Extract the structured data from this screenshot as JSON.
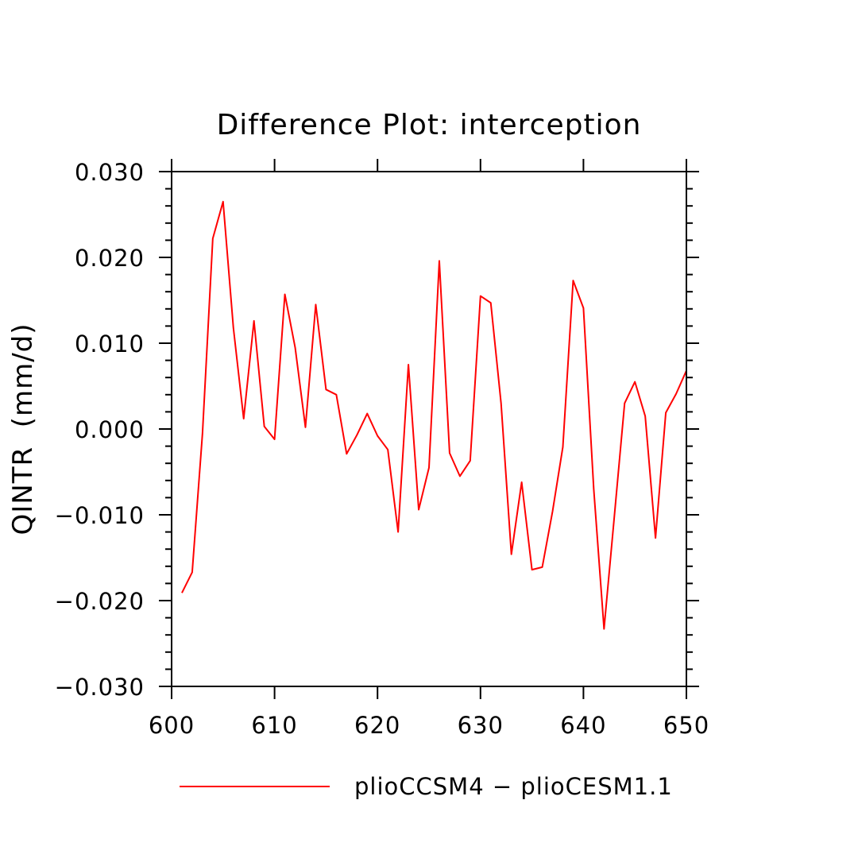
{
  "chart_data": {
    "type": "line",
    "title": "Difference Plot: interception",
    "xlabel": "",
    "ylabel": "QINTR  (mm/d)",
    "xlim": [
      600,
      650
    ],
    "ylim": [
      -0.03,
      0.03
    ],
    "x_ticks": [
      600,
      610,
      620,
      630,
      640,
      650
    ],
    "x_tick_labels": [
      "600",
      "610",
      "620",
      "630",
      "640",
      "650"
    ],
    "y_ticks": [
      -0.03,
      -0.02,
      -0.01,
      0.0,
      0.01,
      0.02,
      0.03
    ],
    "y_tick_labels": [
      "−0.030",
      "−0.020",
      "−0.010",
      "0.000",
      "0.010",
      "0.020",
      "0.030"
    ],
    "grid": false,
    "legend_position": "bottom-center",
    "series": [
      {
        "name": "plioCCSM4 − plioCESM1.1",
        "color": "#ff0000",
        "x": [
          601,
          602,
          603,
          604,
          605,
          606,
          607,
          608,
          609,
          610,
          611,
          612,
          613,
          614,
          615,
          616,
          617,
          618,
          619,
          620,
          621,
          622,
          623,
          624,
          625,
          626,
          627,
          628,
          629,
          630,
          631,
          632,
          633,
          634,
          635,
          636,
          637,
          638,
          639,
          640,
          641,
          642,
          643,
          644,
          645,
          646,
          647,
          648,
          649,
          650
        ],
        "y": [
          -0.0191,
          -0.0167,
          -0.0005,
          0.0222,
          0.0265,
          0.0118,
          0.0012,
          0.0126,
          0.0003,
          -0.0012,
          0.0157,
          0.0095,
          0.0002,
          0.0145,
          0.0046,
          0.004,
          -0.0029,
          -0.0007,
          0.0018,
          -0.0008,
          -0.0024,
          -0.012,
          0.0075,
          -0.0094,
          -0.0045,
          0.0196,
          -0.0028,
          -0.0055,
          -0.0037,
          0.0155,
          0.0147,
          0.003,
          -0.0146,
          -0.0062,
          -0.0164,
          -0.0161,
          -0.0096,
          -0.0021,
          0.0173,
          0.0141,
          -0.007,
          -0.0233,
          -0.0102,
          0.003,
          0.0055,
          0.0015,
          -0.0127,
          0.0019,
          0.0041,
          0.0068
        ]
      }
    ]
  }
}
